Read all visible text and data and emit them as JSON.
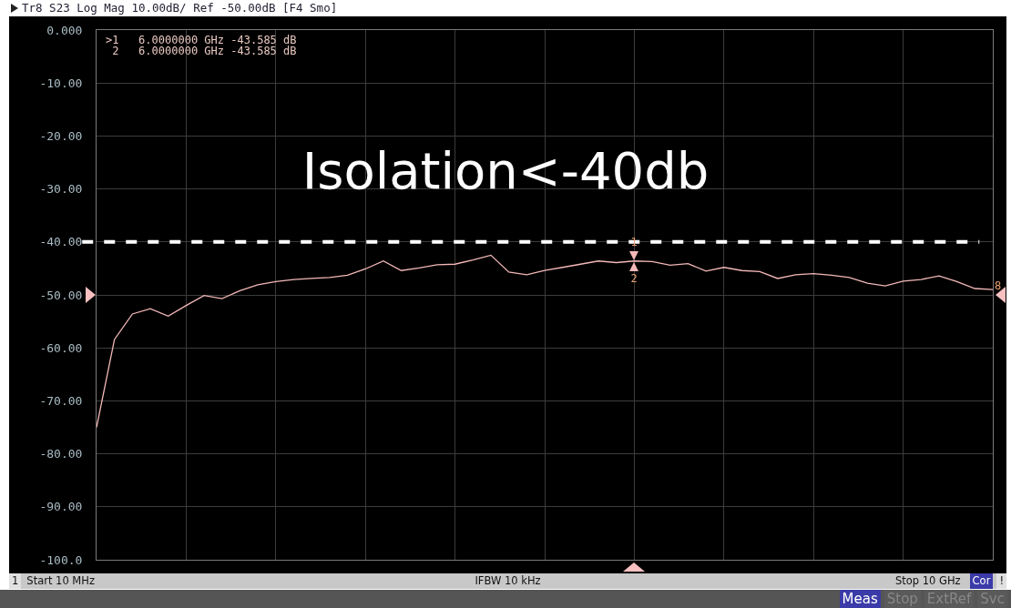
{
  "chart_data": {
    "type": "line",
    "title": "Tr8 S23 Log Mag 10.00dB/ Ref -50.00dB [F4 Smo]",
    "categories": [
      null,
      null,
      null,
      null,
      null,
      null,
      null,
      null,
      null,
      null,
      null,
      null,
      null,
      null,
      null,
      null,
      null,
      null,
      null,
      null,
      null,
      null,
      null,
      null,
      null,
      null,
      null,
      null,
      null,
      null,
      null,
      null,
      null,
      null,
      null,
      null,
      null,
      null,
      null,
      null,
      null,
      null,
      null,
      null,
      null,
      null,
      null,
      null,
      null,
      null,
      null
    ],
    "series": [
      {
        "color": "#f4b8b8",
        "values": [
          -75,
          -58.4,
          -53.6,
          -52.6,
          -54.0,
          -52.0,
          -50.1,
          -50.7,
          -49.2,
          -48.1,
          -47.5,
          -47.1,
          -46.9,
          -46.7,
          -46.3,
          -45.1,
          -43.6,
          -45.4,
          -44.9,
          -44.3,
          -44.2,
          -43.4,
          -42.5,
          -45.7,
          -46.2,
          -45.4,
          -44.8,
          -44.2,
          -43.6,
          -43.9,
          -43.6,
          -43.7,
          -44.4,
          -44.1,
          -45.5,
          -44.8,
          -45.4,
          -45.6,
          -46.9,
          -46.2,
          -46.0,
          -46.3,
          -46.7,
          -47.8,
          -48.3,
          -47.4,
          -47.1,
          -46.4,
          -47.5,
          -48.8,
          -49
        ]
      }
    ],
    "ylim": [
      -100,
      0
    ],
    "yticks": [
      {
        "value": 0,
        "label": "0.000"
      },
      {
        "value": -10,
        "label": "-10.00"
      },
      {
        "value": -20,
        "label": "-20.00"
      },
      {
        "value": -30,
        "label": "-30.00"
      },
      {
        "value": -40,
        "label": "-40.00"
      },
      {
        "value": -50,
        "label": "-50.00"
      },
      {
        "value": -60,
        "label": "-60.00"
      },
      {
        "value": -70,
        "label": "-70.00"
      },
      {
        "value": -80,
        "label": "-80.00"
      },
      {
        "value": -90,
        "label": "-90.00"
      },
      {
        "value": -100,
        "label": "-100.0"
      }
    ],
    "tick_labels": "y",
    "grid": true,
    "ref_lines": [
      {
        "axis": "y",
        "value": -40,
        "label": "Isolation<-40db",
        "color": "#ffffff",
        "line_style": "dashed"
      }
    ],
    "annotations": [
      ">1   6.0000000 GHz -43.585 dB",
      " 2   6.0000000 GHz -43.585 dB",
      "1",
      "2",
      "8",
      "1",
      "Start 10 MHz",
      "IFBW 10 kHz",
      "Stop 10 GHz",
      "Cor",
      "!",
      "Meas",
      "Stop",
      "ExtRef",
      "Svc"
    ]
  }
}
